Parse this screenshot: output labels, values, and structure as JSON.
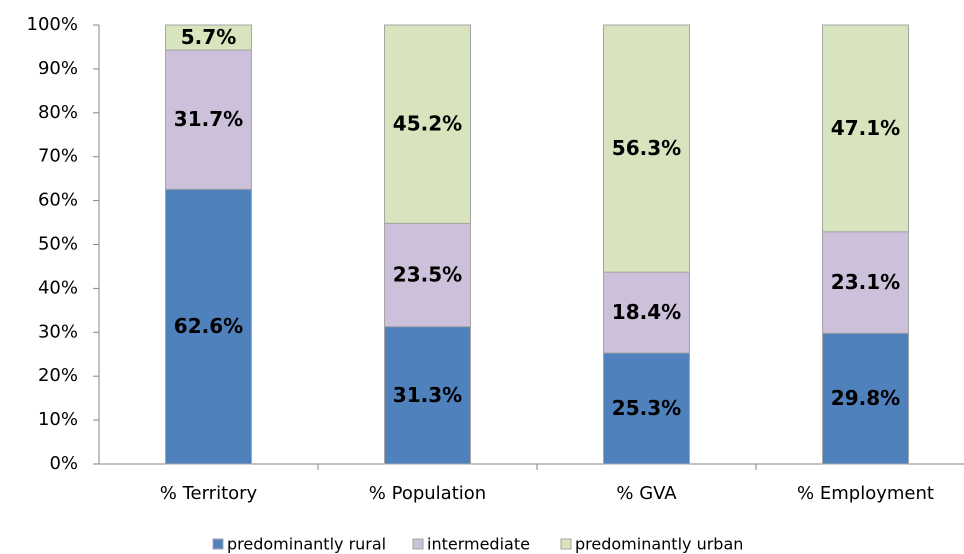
{
  "chart_data": {
    "type": "stacked_bar",
    "categories": [
      "% Territory",
      "% Population",
      "% GVA",
      "% Employment"
    ],
    "series": [
      {
        "name": "predominantly rural",
        "color": "#4f81bd",
        "values": [
          62.6,
          31.3,
          25.3,
          29.8
        ],
        "value_labels": [
          "62.6%",
          "31.3%",
          "25.3%",
          "29.8%"
        ]
      },
      {
        "name": "intermediate",
        "color": "#ccc0da",
        "values": [
          31.7,
          23.5,
          18.4,
          23.1
        ],
        "value_labels": [
          "31.7%",
          "23.5%",
          "18.4%",
          "23.1%"
        ]
      },
      {
        "name": "predominantly urban",
        "color": "#d7e4bd",
        "values": [
          5.7,
          45.2,
          56.3,
          47.1
        ],
        "value_labels": [
          "5.7%",
          "45.2%",
          "56.3%",
          "47.1%"
        ]
      }
    ],
    "ylim": [
      0,
      100
    ],
    "yticks": [
      {
        "value": 0,
        "label": "0%"
      },
      {
        "value": 10,
        "label": "10%"
      },
      {
        "value": 20,
        "label": "20%"
      },
      {
        "value": 30,
        "label": "30%"
      },
      {
        "value": 40,
        "label": "40%"
      },
      {
        "value": 50,
        "label": "50%"
      },
      {
        "value": 60,
        "label": "60%"
      },
      {
        "value": 70,
        "label": "70%"
      },
      {
        "value": 80,
        "label": "80%"
      },
      {
        "value": 90,
        "label": "90%"
      },
      {
        "value": 100,
        "label": "100%"
      }
    ],
    "grid": false,
    "legend": "bottom"
  }
}
